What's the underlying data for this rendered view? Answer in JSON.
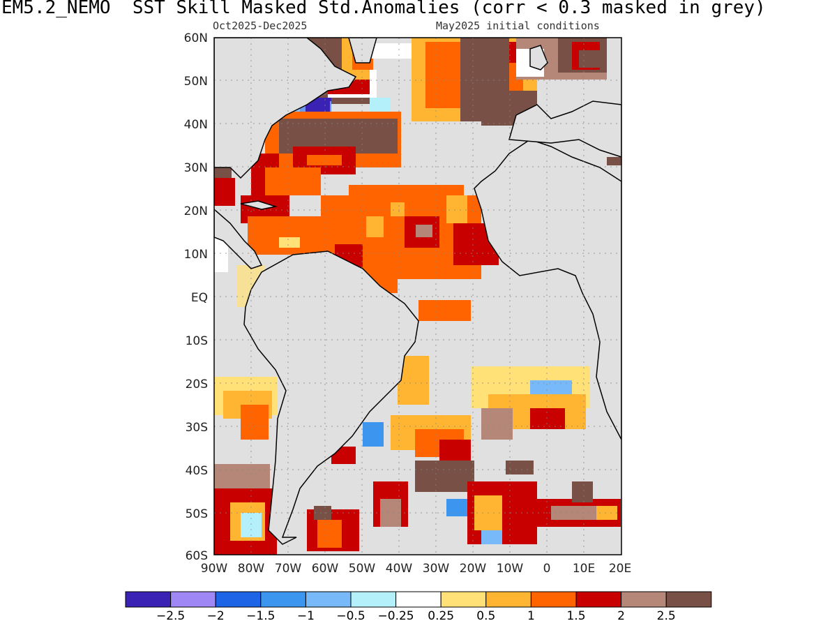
{
  "title": "EM5.2_NEMO  SST Skill Masked Std.Anomalies (corr < 0.3 masked in grey)",
  "subtitle_left": "Oct2025-Dec2025",
  "subtitle_right": "May2025 initial conditions",
  "lat_labels": [
    "60N",
    "50N",
    "40N",
    "30N",
    "20N",
    "10N",
    "EQ",
    "10S",
    "20S",
    "30S",
    "40S",
    "50S",
    "60S"
  ],
  "lon_labels": [
    "90W",
    "80W",
    "70W",
    "60W",
    "50W",
    "40W",
    "30W",
    "20W",
    "10W",
    "0",
    "10E",
    "20E"
  ],
  "colorbar": {
    "colors": [
      "#3a22b4",
      "#9f87f5",
      "#1e64e6",
      "#3c96f0",
      "#78b9fa",
      "#b4f0fa",
      "#ffffff",
      "#ffe178",
      "#ffb432",
      "#ff6400",
      "#c80000",
      "#b48778",
      "#785046"
    ],
    "tick_labels": [
      "-2.5",
      "-2",
      "-1.5",
      "-1",
      "-0.5",
      "-0.25",
      "0.25",
      "0.5",
      "1",
      "1.5",
      "2",
      "2.5"
    ]
  },
  "mask_color": "#e0e0e0"
}
